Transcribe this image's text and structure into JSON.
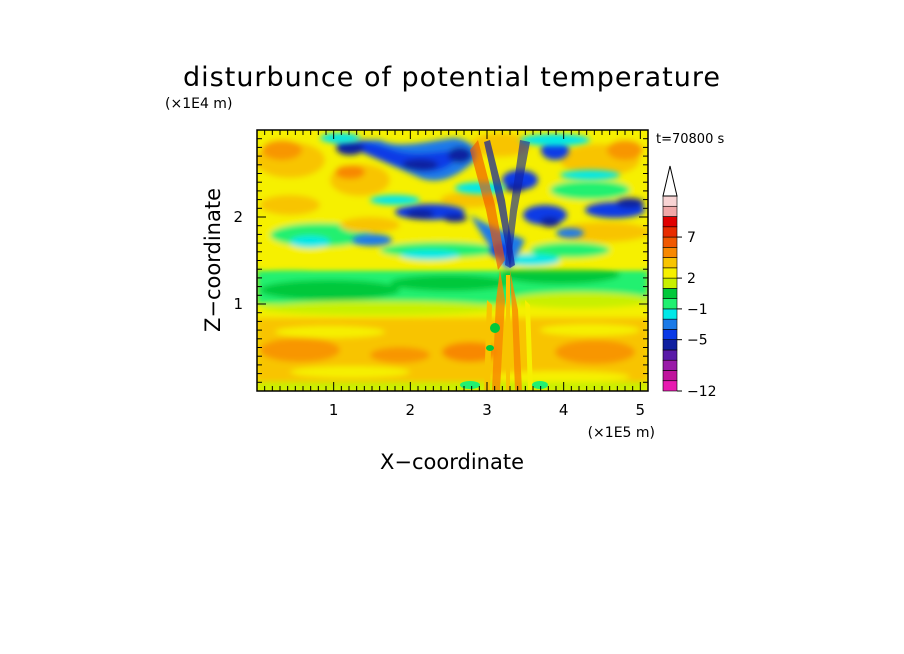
{
  "chart_data": {
    "type": "heatmap",
    "title": "disturbunce of potential temperature",
    "time_label": "t=70800 s",
    "xlabel": "X−coordinate",
    "ylabel": "Z−coordinate",
    "x_unit": "(×1E5 m)",
    "y_unit": "(×1E4 m)",
    "xlim": [
      0,
      5.1
    ],
    "ylim": [
      0,
      3.0
    ],
    "x_ticks": [
      1,
      2,
      3,
      4,
      5
    ],
    "y_ticks": [
      1,
      2
    ],
    "x_tick_labels": [
      "1",
      "2",
      "3",
      "4",
      "5"
    ],
    "y_tick_labels": [
      "1",
      "2"
    ],
    "colorbar": {
      "colors": [
        "#e81ab0",
        "#c0139c",
        "#9a1aa8",
        "#5a1aa8",
        "#1020a0",
        "#0a3ae6",
        "#1a7ae8",
        "#00e8e8",
        "#20f070",
        "#00c83a",
        "#c8f000",
        "#f6f000",
        "#f8c400",
        "#f88800",
        "#f05800",
        "#e82c00",
        "#e00000",
        "#f0a8a8",
        "#f8d4d4"
      ],
      "level_labels": [
        "−12",
        "−5",
        "−1",
        "2",
        "7"
      ],
      "extend_top": true
    },
    "shading": "contour-filled",
    "grid": false
  }
}
